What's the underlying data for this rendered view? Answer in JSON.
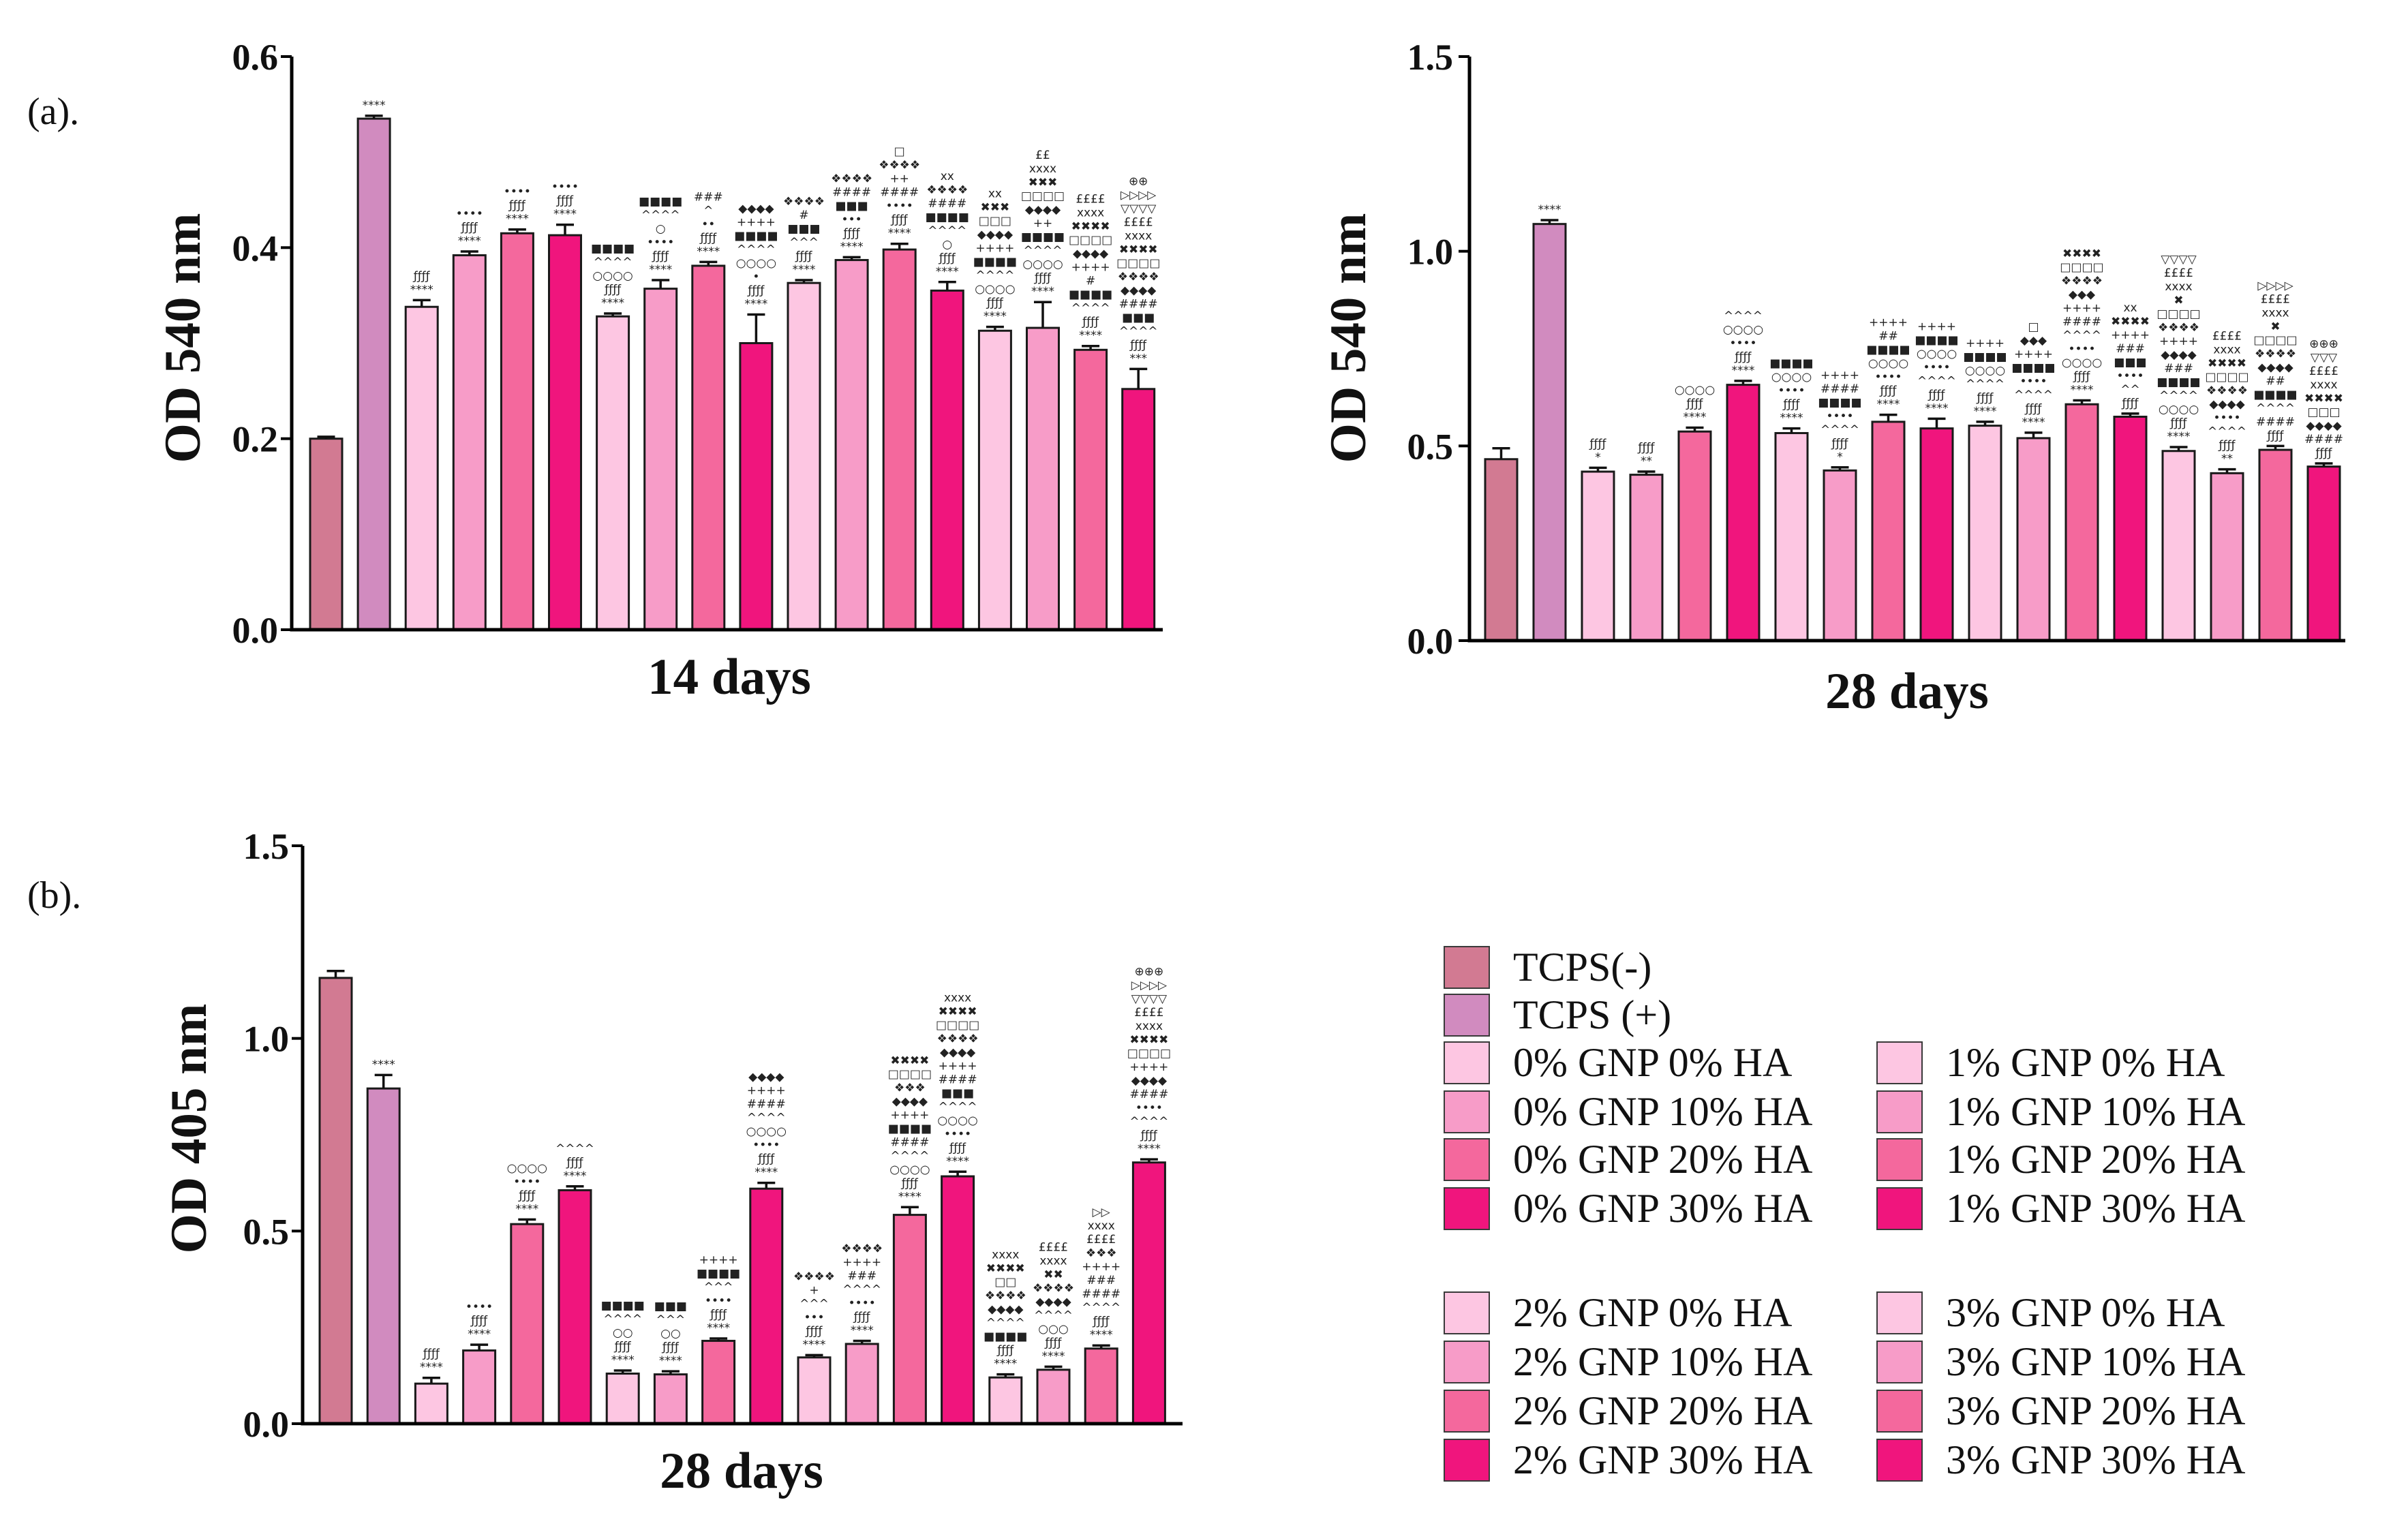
{
  "figure": {
    "panel_a": "(a).",
    "panel_b": "(b)."
  },
  "legend": {
    "items": [
      {
        "label": "TCPS(-)",
        "color": "#d27a92"
      },
      {
        "label": "TCPS (+)",
        "color": "#d18bbf"
      },
      {
        "label": "0% GNP 0% HA",
        "color": "#fdc6e2"
      },
      {
        "label": "0% GNP 10% HA",
        "color": "#f79cc8"
      },
      {
        "label": "0% GNP 20% HA",
        "color": "#f4689d"
      },
      {
        "label": "0% GNP 30% HA",
        "color": "#f0157d"
      },
      {
        "label": "1% GNP 0% HA",
        "color": "#fdc6e2"
      },
      {
        "label": "1% GNP 10% HA",
        "color": "#f79cc8"
      },
      {
        "label": "1% GNP 20% HA",
        "color": "#f4689d"
      },
      {
        "label": "1% GNP 30% HA",
        "color": "#f0157d"
      },
      {
        "label": "2% GNP 0% HA",
        "color": "#fdc6e2"
      },
      {
        "label": "2% GNP 10% HA",
        "color": "#f79cc8"
      },
      {
        "label": "2% GNP 20% HA",
        "color": "#f4689d"
      },
      {
        "label": "2% GNP 30% HA",
        "color": "#f0157d"
      },
      {
        "label": "3% GNP 0% HA",
        "color": "#fdc6e2"
      },
      {
        "label": "3% GNP 10% HA",
        "color": "#f79cc8"
      },
      {
        "label": "3% GNP 20% HA",
        "color": "#f4689d"
      },
      {
        "label": "3% GNP 30% HA",
        "color": "#f0157d"
      }
    ]
  },
  "chart_data": [
    {
      "type": "bar",
      "xlabel": "14 days",
      "ylabel": "OD 540 nm",
      "ylim": [
        0,
        0.6
      ],
      "yticks": [
        "0.0",
        "0.2",
        "0.4",
        "0.6"
      ],
      "values": [
        0.2,
        0.535,
        0.338,
        0.392,
        0.415,
        0.413,
        0.328,
        0.357,
        0.381,
        0.3,
        0.363,
        0.387,
        0.398,
        0.355,
        0.313,
        0.316,
        0.293,
        0.252
      ],
      "errors": [
        0.002,
        0.003,
        0.007,
        0.004,
        0.004,
        0.011,
        0.003,
        0.009,
        0.004,
        0.03,
        0.003,
        0.003,
        0.006,
        0.009,
        0.004,
        0.027,
        0.004,
        0.021
      ],
      "annotations": [
        [],
        [
          "****"
        ],
        [
          "****",
          "ƒƒƒƒ"
        ],
        [
          "****",
          "ƒƒƒƒ",
          "••••"
        ],
        [
          "****",
          "ƒƒƒƒ",
          "••••"
        ],
        [
          "****",
          "ƒƒƒƒ",
          "••••"
        ],
        [
          "****",
          "ƒƒƒƒ",
          "○○○○",
          "^^^^",
          "■■■■"
        ],
        [
          "****",
          "ƒƒƒƒ",
          "••••",
          "○",
          "^^^^",
          "■■■■"
        ],
        [
          "****",
          "ƒƒƒƒ",
          "••",
          "^",
          "###"
        ],
        [
          "****",
          "ƒƒƒƒ",
          "•",
          "○○○○",
          "^^^^",
          "■■■■",
          "++++",
          "◆◆◆◆"
        ],
        [
          "****",
          "ƒƒƒƒ",
          "^^^",
          "■■■",
          "#",
          "❖❖❖❖"
        ],
        [
          "****",
          "ƒƒƒƒ",
          "•••",
          "■■■",
          "####",
          "❖❖❖❖"
        ],
        [
          "****",
          "ƒƒƒƒ",
          "••••",
          "####",
          "++",
          "❖❖❖❖",
          "□"
        ],
        [
          "****",
          "ƒƒƒƒ",
          "○",
          "^^^^",
          "■■■■",
          "####",
          "❖❖❖❖",
          "xx"
        ],
        [
          "****",
          "ƒƒƒƒ",
          "○○○○",
          "^^^^",
          "■■■■",
          "++++",
          "◆◆◆◆",
          "□□□",
          "✖✖✖",
          "xx"
        ],
        [
          "****",
          "ƒƒƒƒ",
          "○○○○",
          "^^^^",
          "■■■■",
          "++",
          "◆◆◆◆",
          "□□□□",
          "✖✖✖",
          "xxxx",
          "££"
        ],
        [
          "****",
          "ƒƒƒƒ",
          "^^^^",
          "■■■■",
          "#",
          "++++",
          "◆◆◆◆",
          "□□□□",
          "✖✖✖✖",
          "xxxx",
          "££££"
        ],
        [
          "***",
          "ƒƒƒƒ",
          "^^^^",
          "■■■",
          "####",
          "◆◆◆◆",
          "❖❖❖❖",
          "□□□□",
          "✖✖✖✖",
          "xxxx",
          "££££",
          "▽▽▽▽",
          "▷▷▷▷",
          "⊕⊕"
        ]
      ]
    },
    {
      "type": "bar",
      "xlabel": "28 days",
      "ylabel": "OD 540 nm",
      "ylim": [
        0,
        1.5
      ],
      "yticks": [
        "0.0",
        "0.5",
        "1.0",
        "1.5"
      ],
      "values": [
        0.466,
        1.07,
        0.434,
        0.426,
        0.537,
        0.657,
        0.533,
        0.437,
        0.562,
        0.545,
        0.552,
        0.52,
        0.607,
        0.575,
        0.487,
        0.43,
        0.49,
        0.447
      ],
      "errors": [
        0.028,
        0.01,
        0.01,
        0.008,
        0.01,
        0.01,
        0.012,
        0.008,
        0.018,
        0.025,
        0.01,
        0.014,
        0.01,
        0.008,
        0.01,
        0.01,
        0.01,
        0.008
      ],
      "annotations": [
        [],
        [
          "****"
        ],
        [
          "*",
          "ƒƒƒƒ"
        ],
        [
          "**",
          "ƒƒƒƒ"
        ],
        [
          "****",
          "ƒƒƒƒ",
          "○○○○"
        ],
        [
          "****",
          "ƒƒƒƒ",
          "••••",
          "○○○○",
          "^^^^"
        ],
        [
          "****",
          "ƒƒƒƒ",
          "••••",
          "○○○○",
          "■■■■"
        ],
        [
          "*",
          "ƒƒƒƒ",
          "^^^^",
          "••••",
          "■■■■",
          "####",
          "++++"
        ],
        [
          "****",
          "ƒƒƒƒ",
          "••••",
          "○○○○",
          "■■■■",
          "##",
          "++++"
        ],
        [
          "****",
          "ƒƒƒƒ",
          "^^^^",
          "••••",
          "○○○○",
          "■■■■",
          "++++"
        ],
        [
          "****",
          "ƒƒƒƒ",
          "^^^^",
          "○○○○",
          "■■■■",
          "++++"
        ],
        [
          "****",
          "ƒƒƒƒ",
          "^^^^",
          "••••",
          "■■■■",
          "++++",
          "◆◆◆",
          "□"
        ],
        [
          "****",
          "ƒƒƒƒ",
          "○○○○",
          "••••",
          "^^^^",
          "####",
          "++++",
          "◆◆◆",
          "❖❖❖❖",
          "□□□□",
          "✖✖✖✖"
        ],
        [
          "ƒƒƒƒ",
          "^^",
          "••••",
          "■■■",
          "###",
          "++++",
          "✖✖✖✖",
          "xx"
        ],
        [
          "****",
          "ƒƒƒƒ",
          "○○○○",
          "^^^^",
          "■■■■",
          "###",
          "◆◆◆◆",
          "++++",
          "❖❖❖❖",
          "□□□□",
          "✖",
          "xxxx",
          "££££",
          "▽▽▽▽"
        ],
        [
          "**",
          "ƒƒƒƒ",
          "^^^^",
          "••••",
          "◆◆◆◆",
          "❖❖❖❖",
          "□□□□",
          "✖✖✖✖",
          "xxxx",
          "££££"
        ],
        [
          "ƒƒƒƒ",
          "####",
          "^^^^",
          "■■■■",
          "##",
          "◆◆◆◆",
          "❖❖❖❖",
          "□□□□",
          "✖",
          "xxxx",
          "££££",
          "▷▷▷▷"
        ],
        [
          "ƒƒƒƒ",
          "####",
          "◆◆◆◆",
          "□□□",
          "✖✖✖✖",
          "xxxx",
          "££££",
          "▽▽▽",
          "⊕⊕⊕"
        ]
      ]
    },
    {
      "type": "bar",
      "xlabel": "28 days",
      "ylabel": "OD 405 nm",
      "ylim": [
        0,
        1.5
      ],
      "yticks": [
        "0.0",
        "0.5",
        "1.0",
        "1.5"
      ],
      "values": [
        1.157,
        0.87,
        0.104,
        0.19,
        0.518,
        0.606,
        0.13,
        0.128,
        0.215,
        0.61,
        0.172,
        0.207,
        0.542,
        0.642,
        0.12,
        0.14,
        0.195,
        0.678
      ],
      "errors": [
        0.018,
        0.035,
        0.015,
        0.015,
        0.012,
        0.01,
        0.008,
        0.008,
        0.006,
        0.015,
        0.006,
        0.008,
        0.02,
        0.012,
        0.008,
        0.008,
        0.008,
        0.008
      ],
      "annotations": [
        [],
        [
          "****"
        ],
        [
          "****",
          "ƒƒƒƒ"
        ],
        [
          "****",
          "ƒƒƒƒ",
          "••••"
        ],
        [
          "****",
          "ƒƒƒƒ",
          "••••",
          "○○○○"
        ],
        [
          "****",
          "ƒƒƒƒ",
          "^^^^"
        ],
        [
          "****",
          "ƒƒƒƒ",
          "○○",
          "^^^^",
          "■■■■"
        ],
        [
          "****",
          "ƒƒƒƒ",
          "○○",
          "^^^",
          "■■■"
        ],
        [
          "****",
          "ƒƒƒƒ",
          "••••",
          "^^^",
          "■■■■",
          "++++"
        ],
        [
          "****",
          "ƒƒƒƒ",
          "••••",
          "○○○○",
          "^^^^",
          "####",
          "++++",
          "◆◆◆◆"
        ],
        [
          "****",
          "ƒƒƒƒ",
          "•••",
          "^^^",
          "+",
          "❖❖❖❖"
        ],
        [
          "****",
          "ƒƒƒƒ",
          "••••",
          "^^^^",
          "###",
          "++++",
          "❖❖❖❖"
        ],
        [
          "****",
          "ƒƒƒƒ",
          "○○○○",
          "^^^^",
          "####",
          "■■■■",
          "++++",
          "◆◆◆◆",
          "❖❖❖",
          "□□□□",
          "✖✖✖✖"
        ],
        [
          "****",
          "ƒƒƒƒ",
          "••••",
          "○○○○",
          "^^^^",
          "■■■",
          "####",
          "++++",
          "◆◆◆◆",
          "❖❖❖❖",
          "□□□□",
          "✖✖✖✖",
          "xxxx"
        ],
        [
          "****",
          "ƒƒƒƒ",
          "■■■■",
          "^^^^",
          "◆◆◆◆",
          "❖❖❖❖",
          "□□",
          "✖✖✖✖",
          "xxxx"
        ],
        [
          "****",
          "ƒƒƒƒ",
          "○○○",
          "^^^^",
          "◆◆◆◆",
          "❖❖❖❖",
          "✖✖",
          "xxxx",
          "££££"
        ],
        [
          "****",
          "ƒƒƒƒ",
          "^^^^",
          "####",
          "###",
          "++++",
          "❖❖❖",
          "££££",
          "xxxx",
          "▷▷"
        ],
        [
          "****",
          "ƒƒƒƒ",
          "^^^^",
          "••••",
          "####",
          "◆◆◆◆",
          "++++",
          "□□□□",
          "✖✖✖✖",
          "xxxx",
          "££££",
          "▽▽▽▽",
          "▷▷▷▷",
          "⊕⊕⊕"
        ]
      ]
    }
  ]
}
